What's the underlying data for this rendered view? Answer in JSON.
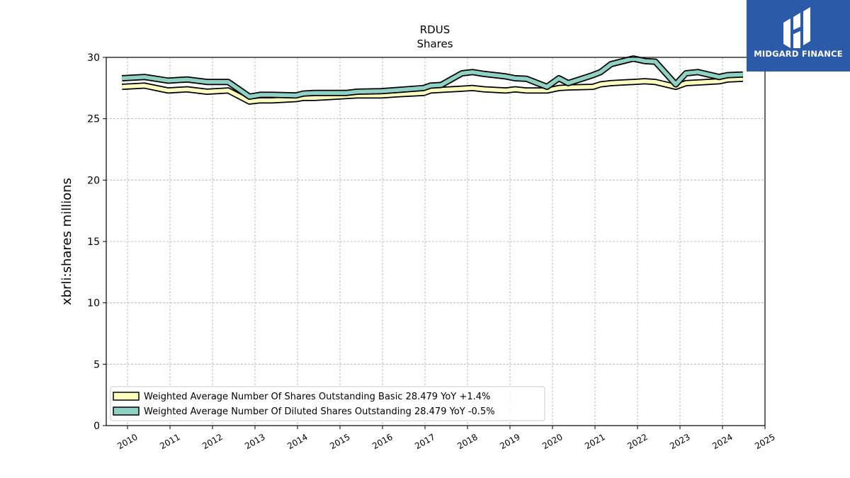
{
  "logo": {
    "text": "MIDGARD FINANCE",
    "color": "#2b5aa8"
  },
  "chart_data": {
    "type": "area",
    "title": "RDUS",
    "subtitle": "Shares",
    "xlabel": "",
    "ylabel": "xbrli:shares millions",
    "xlim": [
      2009.5,
      2025.0
    ],
    "ylim": [
      0,
      30
    ],
    "yticks": [
      0,
      5,
      10,
      15,
      20,
      25,
      30
    ],
    "xticks": [
      "2010",
      "2011",
      "2012",
      "2013",
      "2014",
      "2015",
      "2016",
      "2017",
      "2018",
      "2019",
      "2020",
      "2021",
      "2022",
      "2023",
      "2024",
      "2025"
    ],
    "grid": true,
    "legend_position": "lower-left",
    "series": [
      {
        "name": "Weighted Average Number Of Shares Outstanding Basic",
        "legend_label": "Weighted Average Number Of Shares Outstanding Basic  28.479 YoY +1.4%",
        "color": "#ffffc0",
        "x": [
          2009.87,
          2010.4,
          2010.96,
          2011.4,
          2011.87,
          2012.37,
          2012.87,
          2013.12,
          2013.4,
          2013.97,
          2014.14,
          2014.4,
          2014.92,
          2015.14,
          2015.4,
          2015.97,
          2016.4,
          2016.97,
          2017.13,
          2017.38,
          2017.87,
          2018.12,
          2018.39,
          2018.9,
          2019.12,
          2019.39,
          2019.87,
          2020.15,
          2020.37,
          2020.95,
          2021.13,
          2021.38,
          2021.9,
          2022.17,
          2022.42,
          2022.9,
          2023.14,
          2023.42,
          2023.92,
          2024.12,
          2024.48
        ],
        "values": [
          27.6,
          27.7,
          27.3,
          27.4,
          27.2,
          27.3,
          26.4,
          26.5,
          26.5,
          26.6,
          26.7,
          26.7,
          26.8,
          26.85,
          26.9,
          26.9,
          27.0,
          27.1,
          27.3,
          27.35,
          27.45,
          27.5,
          27.4,
          27.3,
          27.4,
          27.3,
          27.3,
          27.5,
          27.55,
          27.6,
          27.8,
          27.9,
          28.0,
          28.05,
          28.0,
          27.6,
          27.9,
          27.95,
          28.05,
          28.2,
          28.25
        ]
      },
      {
        "name": "Weighted Average Number Of Diluted Shares Outstanding",
        "legend_label": "Weighted Average Number Of Diluted Shares Outstanding  28.479 YoY -0.5%",
        "color": "#8fd1c4",
        "x": [
          2009.87,
          2010.4,
          2010.96,
          2011.4,
          2011.87,
          2012.37,
          2012.87,
          2013.12,
          2013.4,
          2013.97,
          2014.14,
          2014.4,
          2014.92,
          2015.14,
          2015.4,
          2015.97,
          2016.4,
          2016.97,
          2017.13,
          2017.38,
          2017.87,
          2018.12,
          2018.39,
          2018.9,
          2019.12,
          2019.39,
          2019.87,
          2020.15,
          2020.37,
          2020.95,
          2021.13,
          2021.38,
          2021.9,
          2022.17,
          2022.42,
          2022.9,
          2023.14,
          2023.42,
          2023.92,
          2024.12,
          2024.48
        ],
        "values": [
          28.3,
          28.4,
          28.1,
          28.2,
          28.0,
          28.0,
          26.8,
          26.95,
          26.95,
          26.9,
          27.05,
          27.1,
          27.1,
          27.1,
          27.2,
          27.25,
          27.35,
          27.5,
          27.7,
          27.75,
          28.7,
          28.8,
          28.65,
          28.45,
          28.3,
          28.25,
          27.6,
          28.3,
          27.9,
          28.55,
          28.8,
          29.45,
          29.9,
          29.7,
          29.65,
          27.8,
          28.7,
          28.8,
          28.4,
          28.55,
          28.6
        ]
      }
    ]
  }
}
